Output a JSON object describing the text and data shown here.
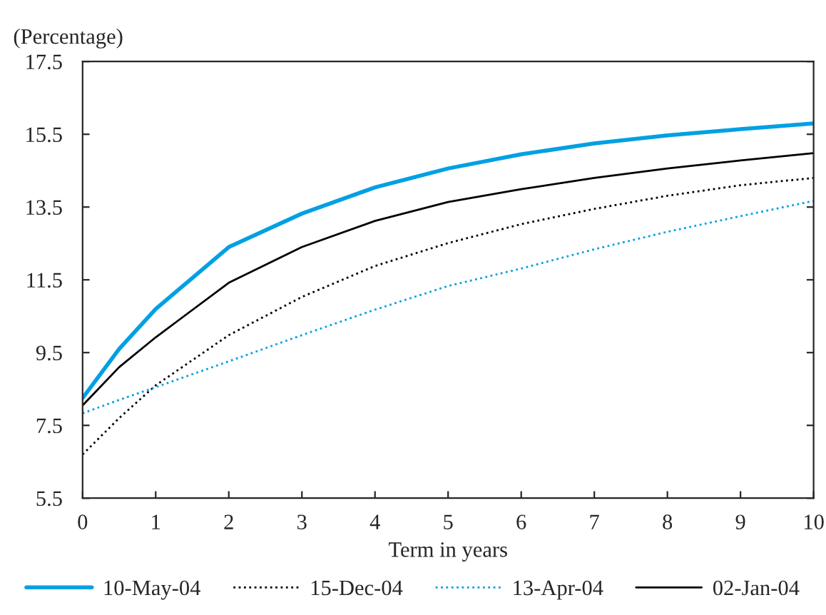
{
  "chart_data": {
    "type": "line",
    "ylabel": "(Percentage)",
    "xlabel": "Term in years",
    "x": [
      0,
      0.5,
      1,
      2,
      3,
      4,
      5,
      6,
      7,
      8,
      9,
      10
    ],
    "series": [
      {
        "name": "10-May-04",
        "color": "#00a0e3",
        "line_style": "solid",
        "values": [
          8.25,
          9.6,
          10.7,
          12.4,
          13.32,
          14.04,
          14.56,
          14.95,
          15.25,
          15.47,
          15.64,
          15.8
        ]
      },
      {
        "name": "15-Dec-04",
        "color": "#000000",
        "line_style": "dotted",
        "values": [
          6.7,
          7.7,
          8.6,
          9.98,
          11.03,
          11.88,
          12.51,
          13.03,
          13.45,
          13.81,
          14.1,
          14.3
        ]
      },
      {
        "name": "13-Apr-04",
        "color": "#00a0e3",
        "line_style": "dotted",
        "values": [
          7.83,
          8.2,
          8.55,
          9.26,
          9.98,
          10.68,
          11.33,
          11.81,
          12.34,
          12.82,
          13.25,
          13.67
        ]
      },
      {
        "name": "02-Jan-04",
        "color": "#000000",
        "line_style": "solid",
        "values": [
          8.05,
          9.1,
          9.92,
          11.42,
          12.4,
          13.12,
          13.64,
          13.99,
          14.3,
          14.56,
          14.78,
          14.98
        ]
      }
    ],
    "xlim": [
      0,
      10
    ],
    "xticks": [
      0,
      1,
      2,
      3,
      4,
      5,
      6,
      7,
      8,
      9,
      10
    ],
    "ylim": [
      5.5,
      17.5
    ],
    "yticks": [
      5.5,
      7.5,
      9.5,
      11.5,
      13.5,
      15.5,
      17.5
    ],
    "grid": false,
    "legend": "bottom"
  }
}
